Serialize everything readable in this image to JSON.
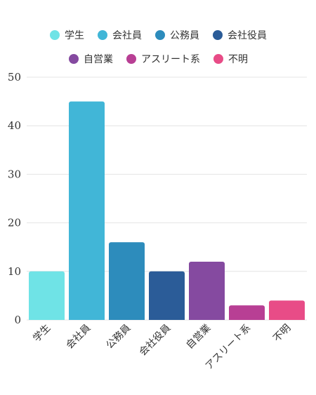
{
  "chart_data": {
    "type": "bar",
    "categories": [
      "学生",
      "会社員",
      "公務員",
      "会社役員",
      "自営業",
      "アスリート系",
      "不明"
    ],
    "values": [
      10,
      45,
      16,
      10,
      12,
      3,
      4
    ],
    "colors": [
      "#6fe3e6",
      "#41b6d7",
      "#2d8cbc",
      "#2b5c98",
      "#854aa0",
      "#b83f94",
      "#e84c87"
    ],
    "title": "",
    "xlabel": "",
    "ylabel": "",
    "ylim": [
      0,
      50
    ],
    "yticks": [
      0,
      10,
      20,
      30,
      40,
      50
    ],
    "grid": true,
    "legend_position": "top",
    "legend": [
      "学生",
      "会社員",
      "公務員",
      "会社役員",
      "自営業",
      "アスリート系",
      "不明"
    ]
  }
}
